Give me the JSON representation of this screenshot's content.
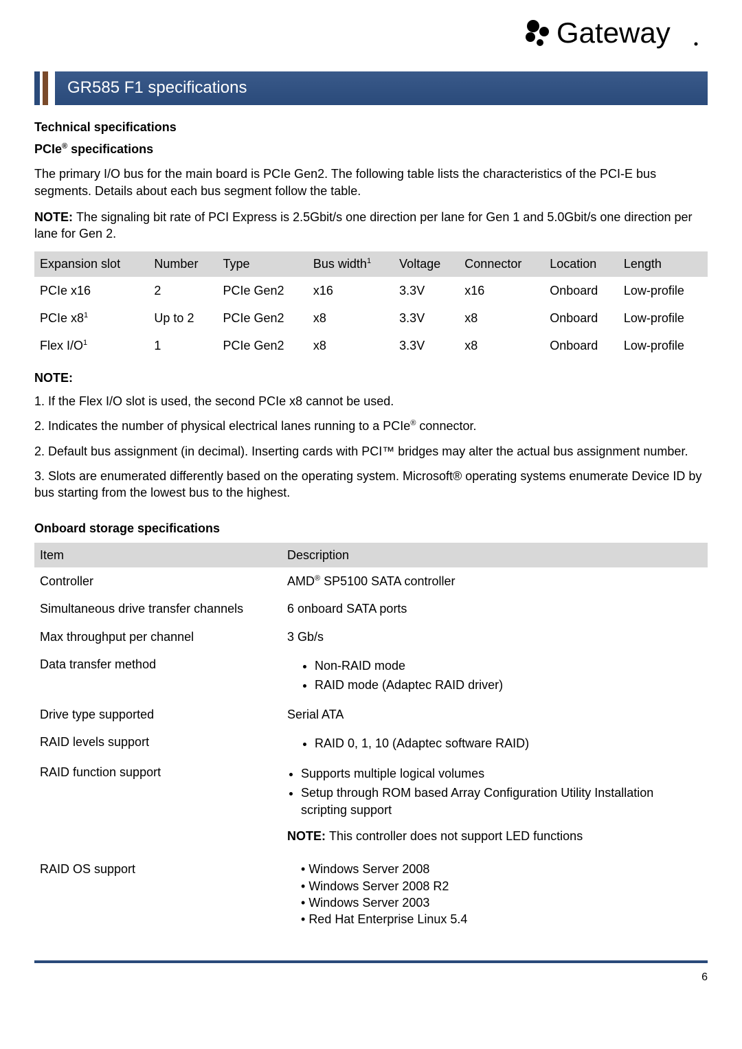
{
  "brand": {
    "name": "Gateway"
  },
  "page_title": "GR585 F1 specifications",
  "headings": {
    "tech_spec": "Technical specifications",
    "pcie_spec_prefix": "PCIe",
    "pcie_spec_suffix": " specifications",
    "note_label": "NOTE:",
    "storage": "Onboard storage specifications"
  },
  "pcie_intro": "The primary I/O bus for the main board is PCIe Gen2. The following table lists the characteristics of the PCI-E bus segments. Details about each bus segment follow the table.",
  "pcie_note_prefix": "NOTE: ",
  "pcie_note": "The signaling bit rate of PCI Express is 2.5Gbit/s one direction per lane for Gen 1 and 5.0Gbit/s one direction per lane for Gen 2.",
  "pcie_table": {
    "columns": [
      "Expansion slot",
      "Number",
      "Type",
      "Bus width",
      "Voltage",
      "Connector",
      "Location",
      "Length"
    ],
    "col_sup": {
      "3": "1"
    },
    "rows": [
      {
        "slot": "PCIe x16",
        "number": "2",
        "type": "PCIe Gen2",
        "bus": "x16",
        "voltage": "3.3V",
        "connector": "x16",
        "location": "Onboard",
        "length": "Low-profile"
      },
      {
        "slot": "PCIe x8",
        "slot_sup": "1",
        "number": "Up to 2",
        "type": "PCIe Gen2",
        "bus": "x8",
        "voltage": "3.3V",
        "connector": "x8",
        "location": "Onboard",
        "length": "Low-profile"
      },
      {
        "slot": "Flex I/O",
        "slot_sup": "1",
        "number": "1",
        "type": "PCIe Gen2",
        "bus": "x8",
        "voltage": "3.3V",
        "connector": "x8",
        "location": "Onboard",
        "length": "Low-profile"
      }
    ]
  },
  "notes": {
    "n1": "1. If the Flex I/O slot is used, the second PCIe x8 cannot be used.",
    "n2_prefix": "2. Indicates the number of physical electrical lanes running to a PCIe",
    "n2_suffix": " connector.",
    "n3": "2. Default bus assignment (in decimal). Inserting cards with PCI™ bridges may alter the actual bus assignment number.",
    "n4": "3. Slots are enumerated differently based on the operating system. Microsoft® operating systems enumerate Device ID by bus starting from the lowest bus to the highest."
  },
  "storage_table": {
    "columns": [
      "Item",
      "Description"
    ],
    "rows": {
      "controller": {
        "item": "Controller",
        "desc_prefix": "AMD",
        "desc_suffix": "  SP5100 SATA controller"
      },
      "channels": {
        "item": "Simultaneous drive transfer channels",
        "desc": "6 onboard SATA ports"
      },
      "throughput": {
        "item": "Max throughput per channel",
        "desc": "3 Gb/s"
      },
      "transfer": {
        "item": "Data transfer method",
        "bullets": [
          "Non-RAID mode",
          "RAID mode (Adaptec RAID driver)"
        ]
      },
      "drive": {
        "item": "Drive type supported",
        "desc": "Serial ATA"
      },
      "raid_levels": {
        "item": "RAID levels support",
        "bullets": [
          "RAID 0, 1, 10 (Adaptec software RAID)"
        ]
      },
      "raid_func": {
        "item": "RAID function support",
        "bullets": [
          "Supports multiple logical volumes",
          "Setup through ROM based Array Configuration Utility Installation scripting support"
        ]
      },
      "raid_note_prefix": "NOTE: ",
      "raid_note_text": "This controller does not support LED functions",
      "raid_os": {
        "item": "RAID OS support",
        "bullets": [
          "Windows Server 2008",
          "Windows Server 2008 R2",
          "Windows Server 2003",
          "Red Hat Enterprise Linux 5.4"
        ]
      }
    }
  },
  "page_number": "6",
  "colors": {
    "header_bar": "#2a4a7a",
    "accent": "#7a4a2a",
    "table_header_bg": "#d8d8d8"
  }
}
